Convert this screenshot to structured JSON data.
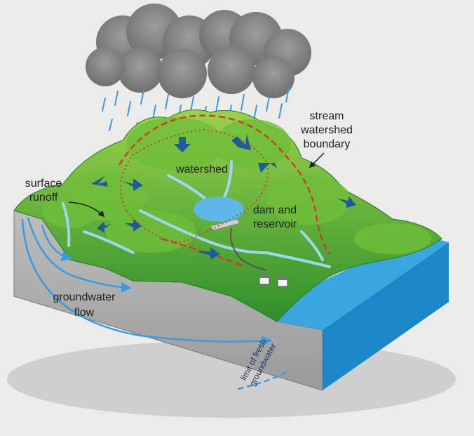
{
  "labels": {
    "stream_watershed_boundary": [
      "stream",
      "watershed",
      "boundary"
    ],
    "surface_runoff": [
      "surface",
      "runoff"
    ],
    "watershed": [
      "watershed"
    ],
    "dam_and_reservoir": [
      "dam and",
      "reservoir"
    ],
    "groundwater_flow": [
      "groundwater",
      "flow"
    ],
    "limit_of_fresh_groundwater": [
      "limit of fresh",
      "groundwater"
    ]
  }
}
